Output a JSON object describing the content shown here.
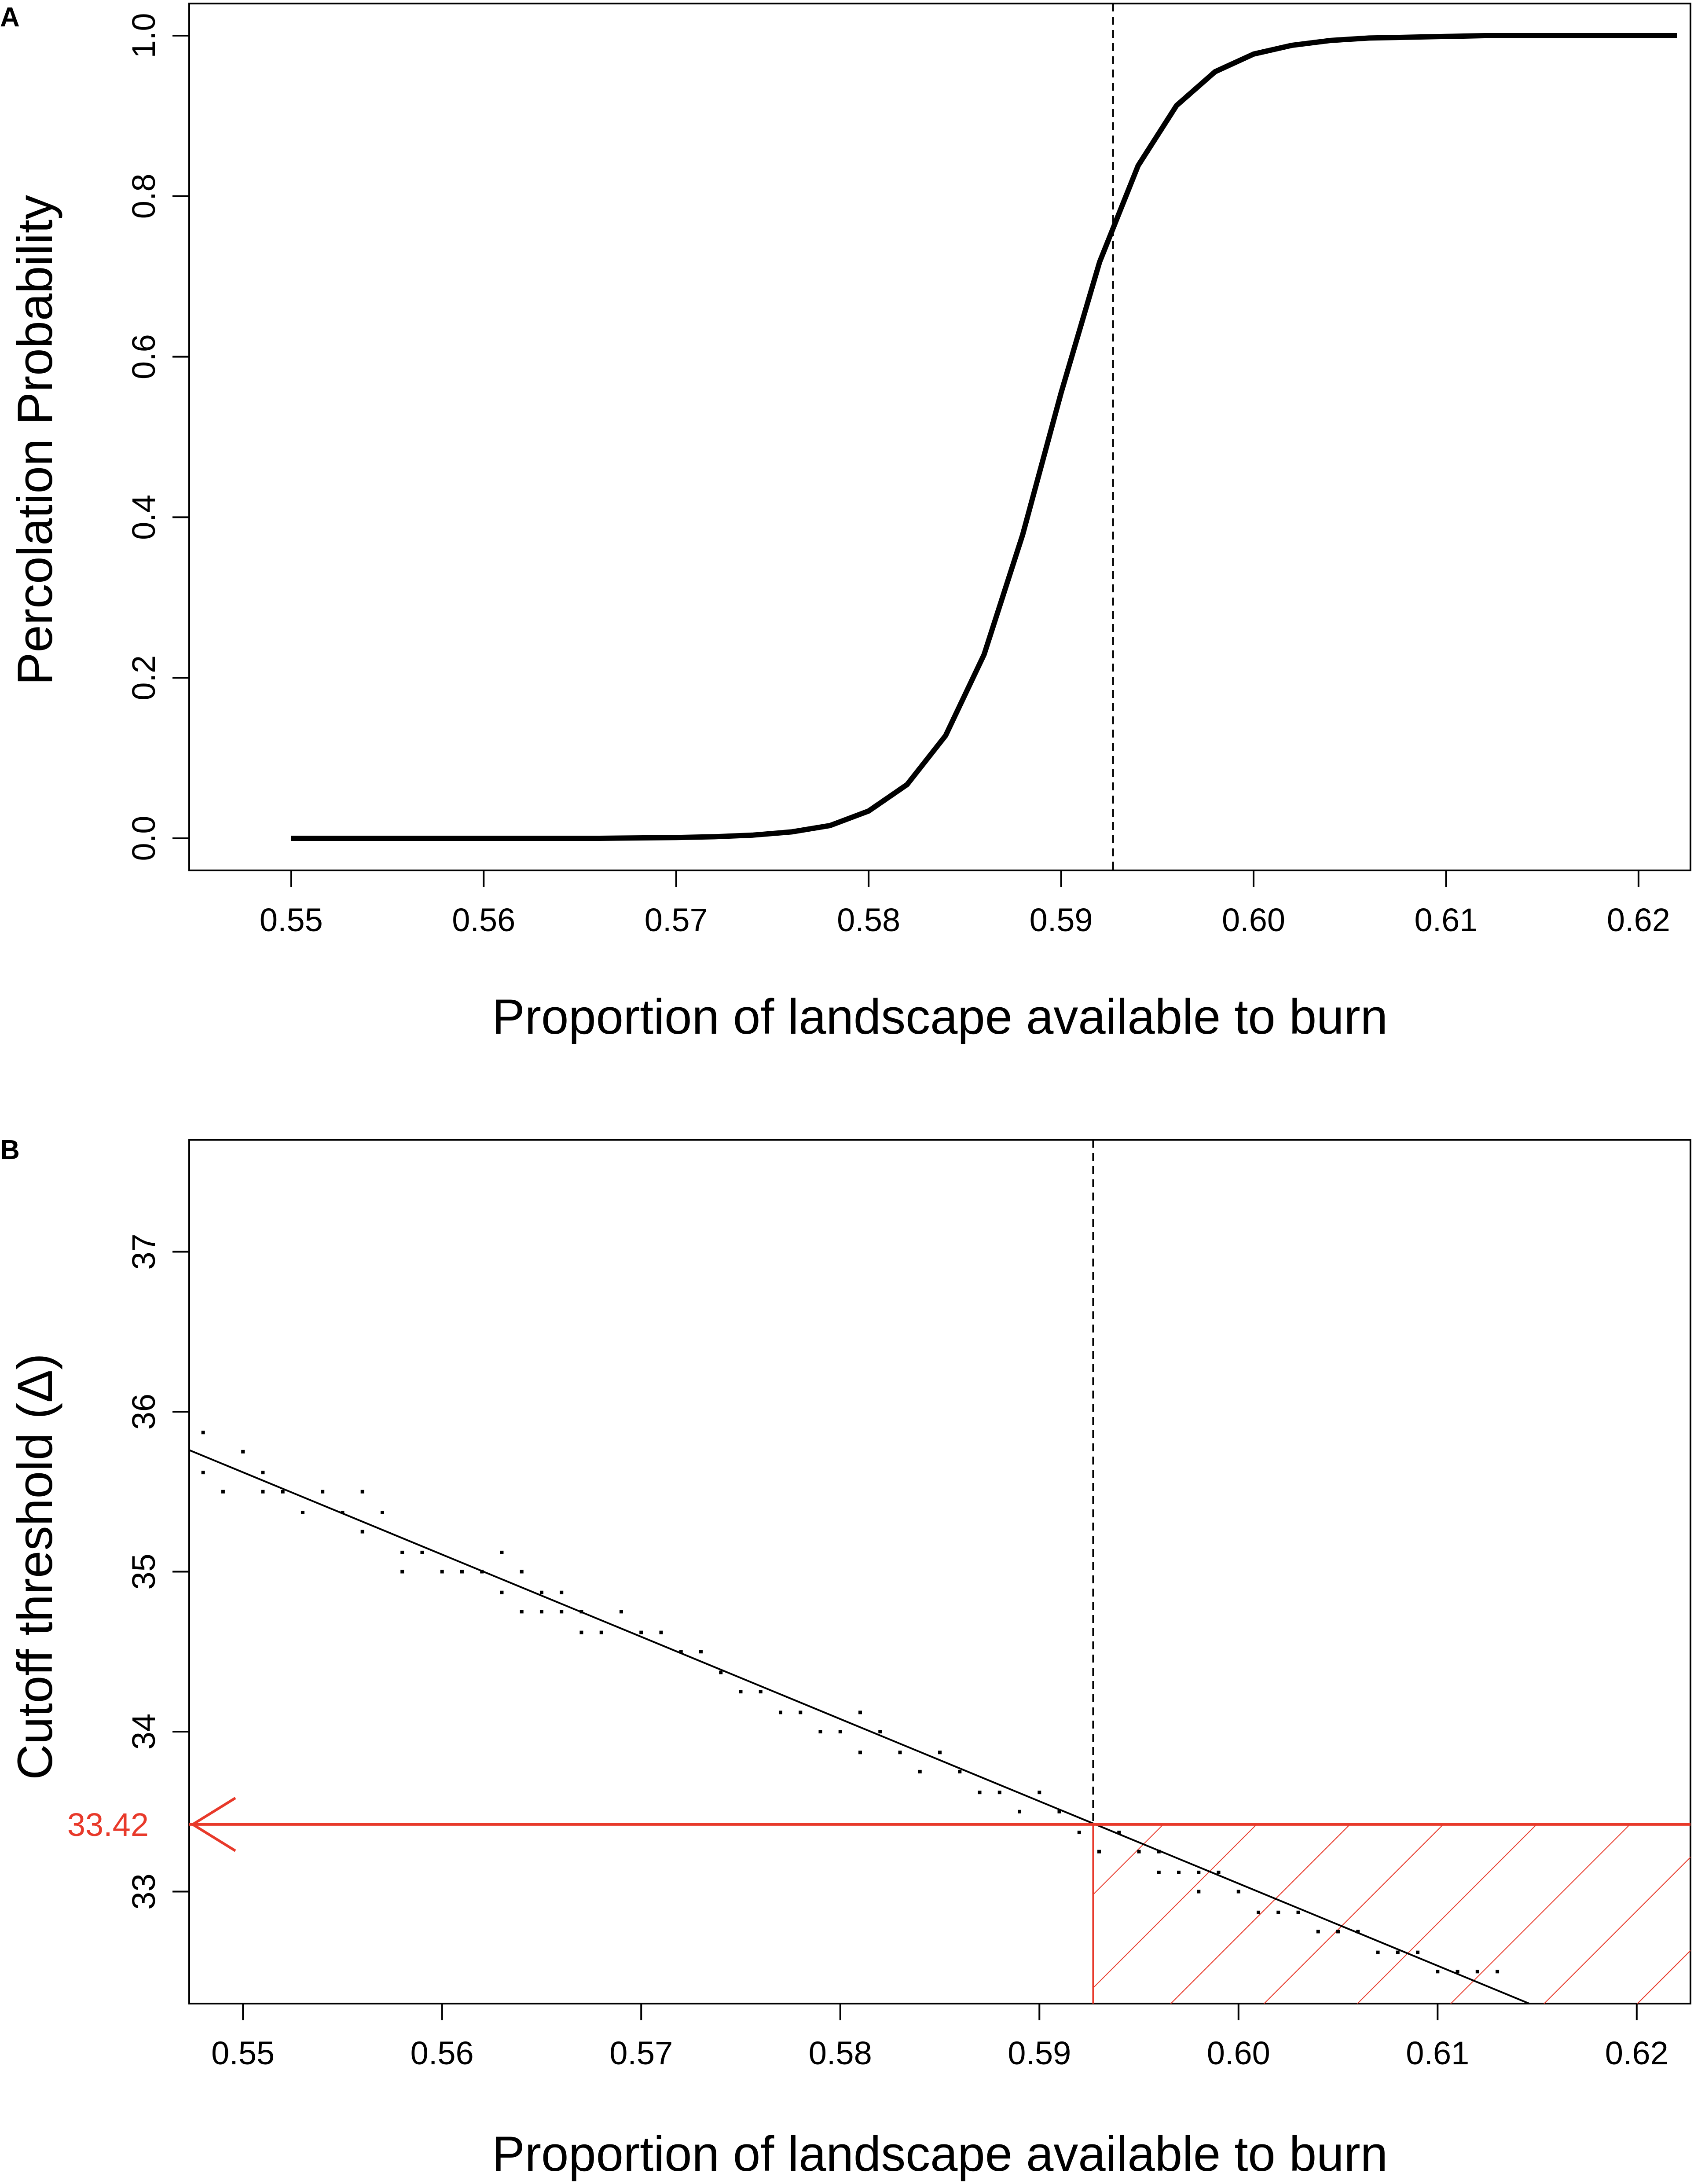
{
  "chart_data": [
    {
      "panel_label": "A",
      "type": "line",
      "xlabel": "Proportion of landscape available to burn",
      "ylabel": "Percolation Probability",
      "xlim": [
        0.5447,
        0.6227
      ],
      "ylim": [
        -0.04,
        1.04
      ],
      "xticks": [
        "0.55",
        "0.56",
        "0.57",
        "0.58",
        "0.59",
        "0.60",
        "0.61",
        "0.62"
      ],
      "yticks": [
        "0.0",
        "0.2",
        "0.4",
        "0.6",
        "0.8",
        "1.0"
      ],
      "grid": false,
      "series": [
        {
          "x": [
            0.55,
            0.552,
            0.554,
            0.556,
            0.558,
            0.56,
            0.562,
            0.564,
            0.566,
            0.568,
            0.57,
            0.572,
            0.574,
            0.576,
            0.578,
            0.58,
            0.582,
            0.584,
            0.586,
            0.588,
            0.59,
            0.592,
            0.594,
            0.596,
            0.598,
            0.6,
            0.602,
            0.604,
            0.606,
            0.608,
            0.61,
            0.612,
            0.614,
            0.616,
            0.618,
            0.62,
            0.622
          ],
          "y": [
            0.0,
            0.0,
            0.0,
            0.0,
            0.0,
            0.0,
            0.0,
            0.0,
            0.0,
            0.0005,
            0.001,
            0.002,
            0.004,
            0.008,
            0.016,
            0.034,
            0.067,
            0.128,
            0.229,
            0.378,
            0.555,
            0.718,
            0.838,
            0.913,
            0.955,
            0.977,
            0.988,
            0.994,
            0.997,
            0.998,
            0.999,
            1.0,
            1.0,
            1.0,
            1.0,
            1.0,
            1.0
          ]
        }
      ],
      "threshold_line_x": 0.5927
    },
    {
      "panel_label": "B",
      "type": "scatter",
      "xlabel": "Proportion of landscape available to burn",
      "ylabel": "Cutoff threshold (Δ)",
      "xlim": [
        0.5473,
        0.6227
      ],
      "ylim": [
        32.3,
        37.7
      ],
      "xticks": [
        "0.55",
        "0.56",
        "0.57",
        "0.58",
        "0.59",
        "0.60",
        "0.61",
        "0.62"
      ],
      "yticks": [
        "33",
        "34",
        "35",
        "36",
        "37"
      ],
      "grid": false,
      "regression_line": {
        "x": [
          0.5473,
          0.6146
        ],
        "y": [
          35.76,
          32.3
        ]
      },
      "threshold_line_x": 0.5927,
      "cutoff_value": 33.42,
      "cutoff_label": "33.42",
      "points": {
        "x": [
          0.548,
          0.548,
          0.549,
          0.55,
          0.551,
          0.551,
          0.552,
          0.553,
          0.554,
          0.555,
          0.556,
          0.556,
          0.557,
          0.558,
          0.558,
          0.559,
          0.56,
          0.561,
          0.562,
          0.563,
          0.563,
          0.564,
          0.564,
          0.565,
          0.565,
          0.566,
          0.566,
          0.567,
          0.567,
          0.568,
          0.569,
          0.57,
          0.571,
          0.572,
          0.573,
          0.574,
          0.575,
          0.576,
          0.577,
          0.578,
          0.579,
          0.58,
          0.581,
          0.581,
          0.582,
          0.583,
          0.584,
          0.585,
          0.586,
          0.587,
          0.588,
          0.589,
          0.59,
          0.591,
          0.592,
          0.593,
          0.594,
          0.595,
          0.596,
          0.596,
          0.597,
          0.598,
          0.598,
          0.599,
          0.6,
          0.601,
          0.602,
          0.603,
          0.604,
          0.605,
          0.606,
          0.607,
          0.608,
          0.609,
          0.61,
          0.611,
          0.612,
          0.613
        ],
        "y": [
          35.87,
          35.62,
          35.5,
          35.75,
          35.62,
          35.5,
          35.5,
          35.37,
          35.5,
          35.37,
          35.5,
          35.25,
          35.37,
          35.12,
          35.0,
          35.12,
          35.0,
          35.0,
          35.0,
          35.12,
          34.87,
          35.0,
          34.75,
          34.87,
          34.75,
          34.87,
          34.75,
          34.75,
          34.62,
          34.62,
          34.75,
          34.62,
          34.62,
          34.5,
          34.5,
          34.37,
          34.25,
          34.25,
          34.12,
          34.12,
          34.0,
          34.0,
          33.87,
          34.12,
          34.0,
          33.87,
          33.75,
          33.87,
          33.75,
          33.62,
          33.62,
          33.5,
          33.62,
          33.5,
          33.37,
          33.25,
          33.37,
          33.25,
          33.12,
          33.25,
          33.12,
          33.0,
          33.12,
          33.12,
          33.0,
          32.87,
          32.87,
          32.87,
          32.75,
          32.75,
          32.75,
          32.62,
          32.62,
          32.62,
          32.5,
          32.5,
          32.5,
          32.5
        ]
      }
    }
  ]
}
